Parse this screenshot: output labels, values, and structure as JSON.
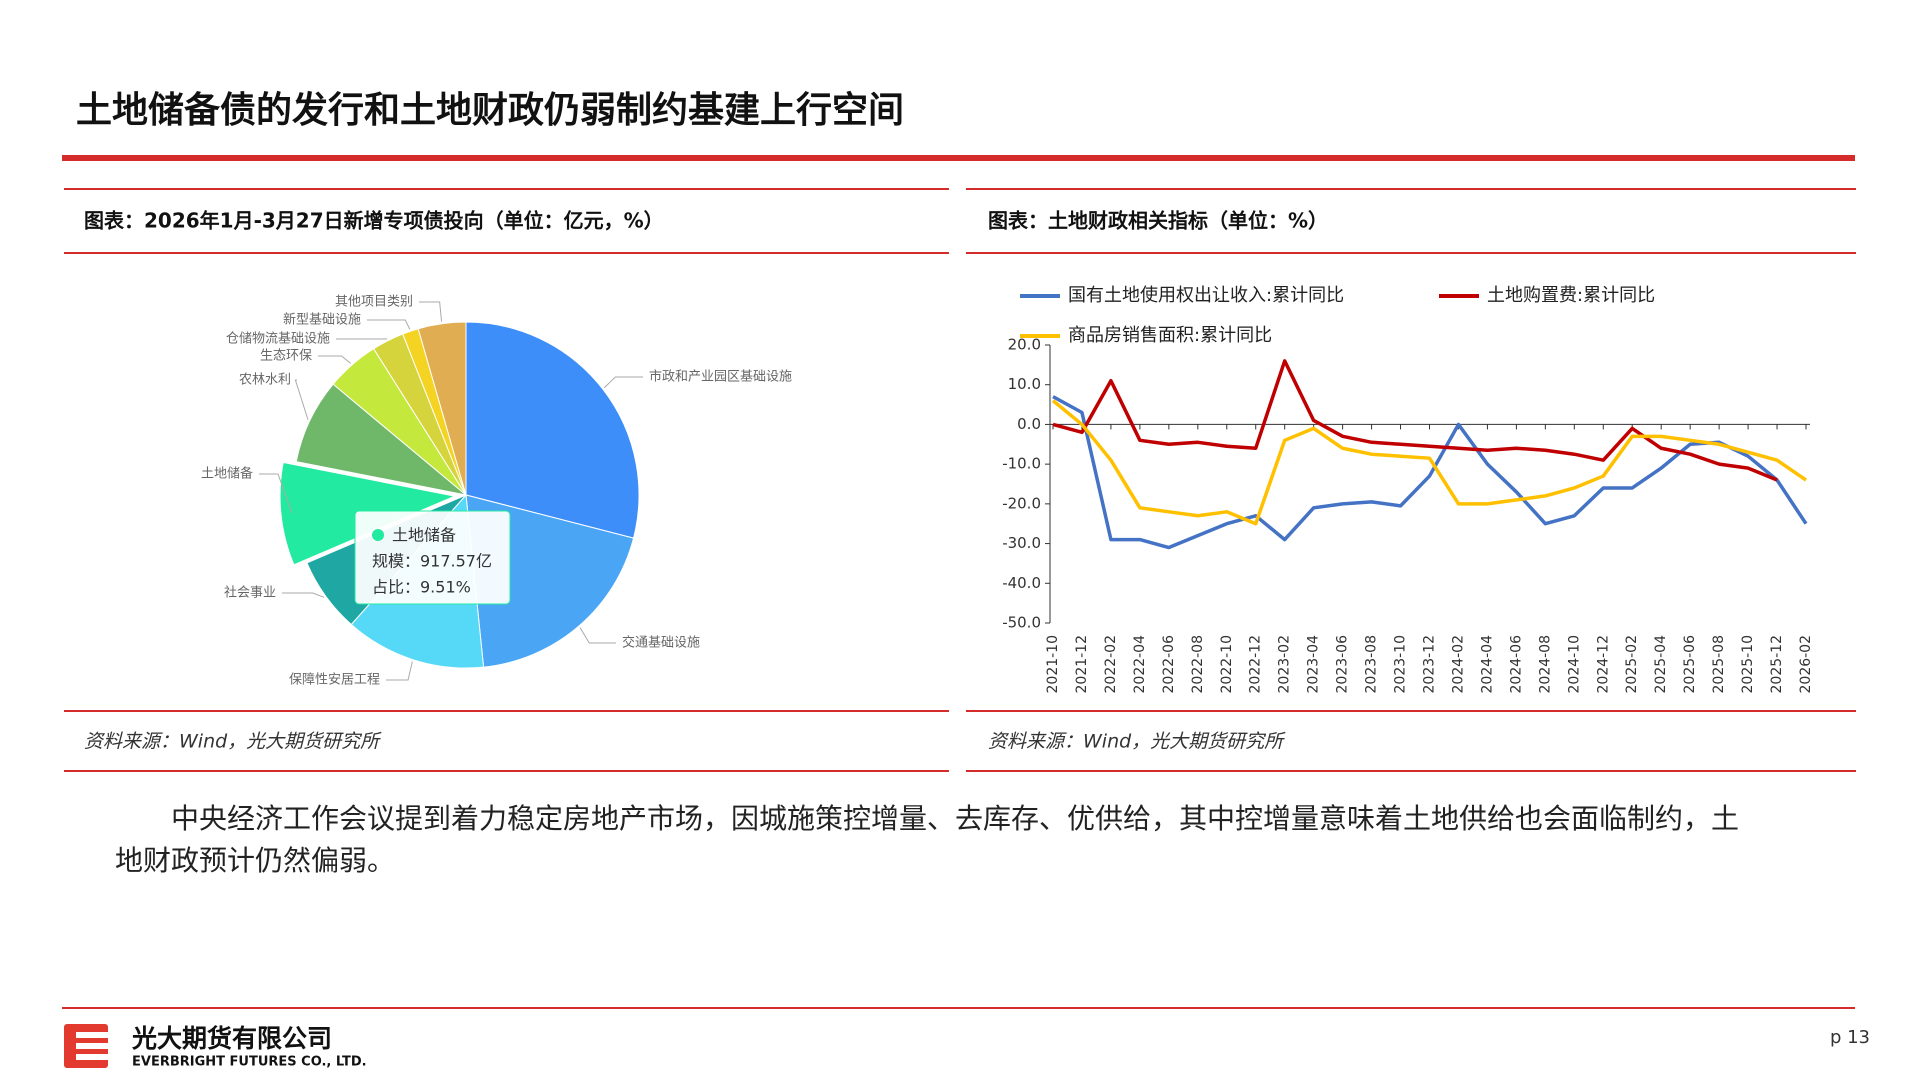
{
  "title": "土地储备债的发行和土地财政仍弱制约基建上行空间",
  "chart_data": [
    {
      "type": "pie",
      "title": "图表：2026年1月-3月27日新增专项债投向（单位：亿元，%）",
      "categories": [
        "市政和产业园区基础设施",
        "交通基础设施",
        "保障性安居工程",
        "社会事业",
        "土地储备",
        "农林水利",
        "生态环保",
        "仓储物流基础设施",
        "新型基础设施",
        "其他项目类别"
      ],
      "values": [
        2800,
        1870,
        1270,
        680,
        917.57,
        770,
        480,
        290,
        145,
        430
      ],
      "colors": [
        "#3d8ef8",
        "#4aa6f5",
        "#55d9f7",
        "#1ea7a3",
        "#22eaa0",
        "#6fb86a",
        "#c4e83c",
        "#d6d43c",
        "#f5d322",
        "#e0ad52"
      ],
      "tooltip": {
        "lines": [
          "规模：917.57亿",
          "占比：9.51%"
        ]
      },
      "source": "资料来源：Wind，光大期货研究所"
    },
    {
      "type": "line",
      "title": "图表：土地财政相关指标（单位：%）",
      "categories": [
        "2021-10",
        "2021-12",
        "2022-02",
        "2022-04",
        "2022-06",
        "2022-08",
        "2022-10",
        "2022-12",
        "2023-02",
        "2023-04",
        "2023-06",
        "2023-08",
        "2023-10",
        "2023-12",
        "2024-02",
        "2024-04",
        "2024-06",
        "2024-08",
        "2024-10",
        "2024-12",
        "2025-02",
        "2025-04",
        "2025-06",
        "2025-08",
        "2025-10",
        "2025-12",
        "2026-02"
      ],
      "series": [
        {
          "name": "国有土地使用权出让收入:累计同比",
          "color": "#4472c4",
          "values": [
            7,
            3,
            -29,
            -29,
            -31,
            -28,
            -25,
            -23,
            -29,
            -21,
            -20,
            -19.5,
            -20.5,
            -13,
            0,
            -10,
            -17,
            -25,
            -23,
            -16,
            -16,
            -11,
            -5,
            -4.5,
            -8,
            -14,
            -25
          ]
        },
        {
          "name": "土地购置费:累计同比",
          "color": "#c00000",
          "values": [
            0,
            -2,
            11,
            -4,
            -5,
            -4.5,
            -5.5,
            -6,
            16,
            1,
            -3,
            -4.5,
            -5,
            -5.5,
            -6,
            -6.5,
            -6,
            -6.5,
            -7.5,
            -9,
            -1,
            -6,
            -7.5,
            -10,
            -11,
            -14,
            null
          ]
        },
        {
          "name": "商品房销售面积:累计同比",
          "color": "#ffc000",
          "values": [
            6,
            0,
            -9,
            -21,
            -22,
            -23,
            -22,
            -25,
            -4,
            -1,
            -6,
            -7.5,
            -8,
            -8.5,
            -20,
            -20,
            -19,
            -18,
            -16,
            -13,
            -3,
            -3,
            -4,
            -5,
            -7,
            -9,
            -14
          ]
        }
      ],
      "ylim": [
        -50,
        20
      ],
      "yticks": [
        {
          "value": 20,
          "label": "20.0"
        },
        {
          "value": 10,
          "label": "10.0"
        },
        {
          "value": 0,
          "label": "0.0"
        },
        {
          "value": -10,
          "label": "-10.0"
        },
        {
          "value": -20,
          "label": "-20.0"
        },
        {
          "value": -30,
          "label": "-30.0"
        },
        {
          "value": -40,
          "label": "-40.0"
        },
        {
          "value": -50,
          "label": "-50.0"
        }
      ],
      "source": "资料来源：Wind，光大期货研究所"
    }
  ],
  "body": "中央经济工作会议提到着力稳定房地产市场，因城施策控增量、去库存、优供给，其中控增量意味着土地供给也会面临制约，土地财政预计仍然偏弱。",
  "footer": {
    "company": "光大期货有限公司",
    "company_en": "EVERBRIGHT FUTURES CO., LTD.",
    "page": "p 13"
  }
}
